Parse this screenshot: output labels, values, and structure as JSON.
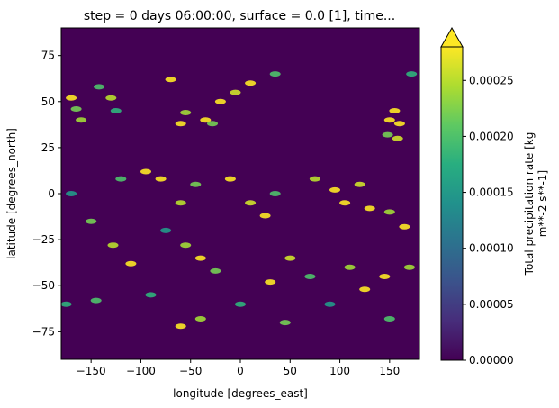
{
  "chart_data": {
    "type": "heatmap",
    "title": "step = 0 days 06:00:00, surface = 0.0 [1], time...",
    "xlabel": "longitude [degrees_east]",
    "ylabel": "latitude [degrees_north]",
    "xlim": [
      -180,
      180
    ],
    "ylim": [
      -90,
      90
    ],
    "xticks": [
      -150,
      -100,
      -50,
      0,
      50,
      100,
      150
    ],
    "yticks": [
      -75,
      -50,
      -25,
      0,
      25,
      50,
      75
    ],
    "xtick_labels": [
      "−150",
      "−100",
      "−50",
      "0",
      "50",
      "100",
      "150"
    ],
    "ytick_labels": [
      "−75",
      "−50",
      "−25",
      "0",
      "25",
      "50",
      "75"
    ],
    "colorbar": {
      "label_line1": "Total precipitation rate [kg",
      "label_line2": "m**-2 s**-1]",
      "vmin": 0.0,
      "vmax": 0.00028,
      "extend": "max",
      "ticks": [
        0.0,
        5e-05,
        0.0001,
        0.00015,
        0.0002,
        0.00025
      ],
      "tick_labels": [
        "0.00000",
        "0.00005",
        "0.00010",
        "0.00015",
        "0.00020",
        "0.00025"
      ],
      "colormap": "viridis"
    },
    "features": [
      {
        "lon": -170,
        "lat": 52,
        "value": 0.00028
      },
      {
        "lon": -165,
        "lat": 46,
        "value": 0.00022
      },
      {
        "lon": -160,
        "lat": 40,
        "value": 0.00024
      },
      {
        "lon": -142,
        "lat": 58,
        "value": 0.0002
      },
      {
        "lon": -130,
        "lat": 52,
        "value": 0.00025
      },
      {
        "lon": -125,
        "lat": 45,
        "value": 0.00018
      },
      {
        "lon": -70,
        "lat": 62,
        "value": 0.00028
      },
      {
        "lon": -60,
        "lat": 38,
        "value": 0.00028
      },
      {
        "lon": -55,
        "lat": 44,
        "value": 0.00024
      },
      {
        "lon": -35,
        "lat": 40,
        "value": 0.00028
      },
      {
        "lon": -20,
        "lat": 50,
        "value": 0.00028
      },
      {
        "lon": -5,
        "lat": 55,
        "value": 0.00026
      },
      {
        "lon": 10,
        "lat": 60,
        "value": 0.00028
      },
      {
        "lon": -28,
        "lat": 38,
        "value": 0.00022
      },
      {
        "lon": 35,
        "lat": 65,
        "value": 0.0002
      },
      {
        "lon": 150,
        "lat": 40,
        "value": 0.00028
      },
      {
        "lon": 155,
        "lat": 45,
        "value": 0.00028
      },
      {
        "lon": 160,
        "lat": 38,
        "value": 0.00028
      },
      {
        "lon": 158,
        "lat": 30,
        "value": 0.00026
      },
      {
        "lon": 148,
        "lat": 32,
        "value": 0.00022
      },
      {
        "lon": 172,
        "lat": 65,
        "value": 0.00018
      },
      {
        "lon": -170,
        "lat": 0,
        "value": 0.00015
      },
      {
        "lon": -120,
        "lat": 8,
        "value": 0.0002
      },
      {
        "lon": -95,
        "lat": 12,
        "value": 0.00028
      },
      {
        "lon": -80,
        "lat": 8,
        "value": 0.00028
      },
      {
        "lon": -60,
        "lat": -5,
        "value": 0.00025
      },
      {
        "lon": -45,
        "lat": 5,
        "value": 0.00022
      },
      {
        "lon": -10,
        "lat": 8,
        "value": 0.00028
      },
      {
        "lon": 10,
        "lat": -5,
        "value": 0.00026
      },
      {
        "lon": 25,
        "lat": -12,
        "value": 0.00028
      },
      {
        "lon": 35,
        "lat": 0,
        "value": 0.0002
      },
      {
        "lon": 75,
        "lat": 8,
        "value": 0.00025
      },
      {
        "lon": 95,
        "lat": 2,
        "value": 0.00028
      },
      {
        "lon": 105,
        "lat": -5,
        "value": 0.00028
      },
      {
        "lon": 120,
        "lat": 5,
        "value": 0.00026
      },
      {
        "lon": 130,
        "lat": -8,
        "value": 0.00028
      },
      {
        "lon": 150,
        "lat": -10,
        "value": 0.00024
      },
      {
        "lon": 165,
        "lat": -18,
        "value": 0.00028
      },
      {
        "lon": -150,
        "lat": -15,
        "value": 0.00022
      },
      {
        "lon": -128,
        "lat": -28,
        "value": 0.00025
      },
      {
        "lon": -110,
        "lat": -38,
        "value": 0.00028
      },
      {
        "lon": -75,
        "lat": -20,
        "value": 0.00015
      },
      {
        "lon": -55,
        "lat": -28,
        "value": 0.00024
      },
      {
        "lon": -40,
        "lat": -35,
        "value": 0.00028
      },
      {
        "lon": -25,
        "lat": -42,
        "value": 0.00022
      },
      {
        "lon": 30,
        "lat": -48,
        "value": 0.00028
      },
      {
        "lon": 50,
        "lat": -35,
        "value": 0.00026
      },
      {
        "lon": 70,
        "lat": -45,
        "value": 0.0002
      },
      {
        "lon": 110,
        "lat": -40,
        "value": 0.00024
      },
      {
        "lon": 125,
        "lat": -52,
        "value": 0.00028
      },
      {
        "lon": 145,
        "lat": -45,
        "value": 0.00028
      },
      {
        "lon": 170,
        "lat": -40,
        "value": 0.00024
      },
      {
        "lon": -175,
        "lat": -60,
        "value": 0.00018
      },
      {
        "lon": -145,
        "lat": -58,
        "value": 0.0002
      },
      {
        "lon": -90,
        "lat": -55,
        "value": 0.00018
      },
      {
        "lon": -60,
        "lat": -72,
        "value": 0.00028
      },
      {
        "lon": -40,
        "lat": -68,
        "value": 0.00024
      },
      {
        "lon": 0,
        "lat": -60,
        "value": 0.00018
      },
      {
        "lon": 45,
        "lat": -70,
        "value": 0.00022
      },
      {
        "lon": 90,
        "lat": -60,
        "value": 0.00015
      },
      {
        "lon": 150,
        "lat": -68,
        "value": 0.0002
      }
    ]
  }
}
